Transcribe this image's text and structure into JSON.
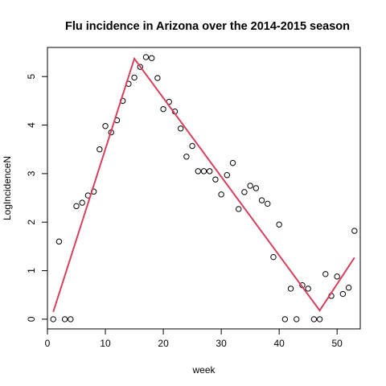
{
  "chart_data": {
    "type": "scatter",
    "title": "Flu incidence in Arizona over the 2014-2015 season",
    "xlabel": "week",
    "ylabel": "LogIncidenceN",
    "xlim": [
      0,
      54
    ],
    "ylim": [
      -0.2,
      5.6
    ],
    "xticks": [
      0,
      10,
      20,
      30,
      40,
      50
    ],
    "yticks": [
      0,
      1,
      2,
      3,
      4,
      5
    ],
    "grid": false,
    "points": {
      "x": [
        1,
        2,
        3,
        4,
        5,
        6,
        7,
        8,
        9,
        10,
        11,
        12,
        13,
        14,
        15,
        16,
        17,
        18,
        19,
        20,
        21,
        22,
        23,
        24,
        25,
        26,
        27,
        28,
        29,
        30,
        31,
        32,
        33,
        34,
        35,
        36,
        37,
        38,
        39,
        40,
        41,
        42,
        43,
        44,
        45,
        46,
        47,
        48,
        49,
        50,
        51,
        52,
        53
      ],
      "y": [
        0,
        1.6,
        0,
        0,
        2.33,
        2.4,
        2.55,
        2.63,
        3.5,
        3.98,
        3.85,
        4.1,
        4.5,
        4.85,
        4.98,
        5.2,
        5.4,
        5.38,
        4.97,
        4.33,
        4.48,
        4.28,
        3.93,
        3.35,
        3.57,
        3.05,
        3.05,
        3.05,
        2.88,
        2.57,
        2.97,
        3.22,
        2.27,
        2.62,
        2.75,
        2.7,
        2.45,
        2.38,
        1.28,
        1.95,
        0,
        0.63,
        0,
        0.7,
        0.63,
        0,
        0,
        0.93,
        0.48,
        0.88,
        0.52,
        0.65,
        1.82
      ]
    },
    "fit_line": {
      "color": "#d6405c",
      "x": [
        1,
        15,
        47,
        53
      ],
      "y": [
        0.15,
        5.37,
        0.18,
        1.27
      ]
    },
    "colors": {
      "points": "#000000",
      "axes": "#000000"
    }
  }
}
